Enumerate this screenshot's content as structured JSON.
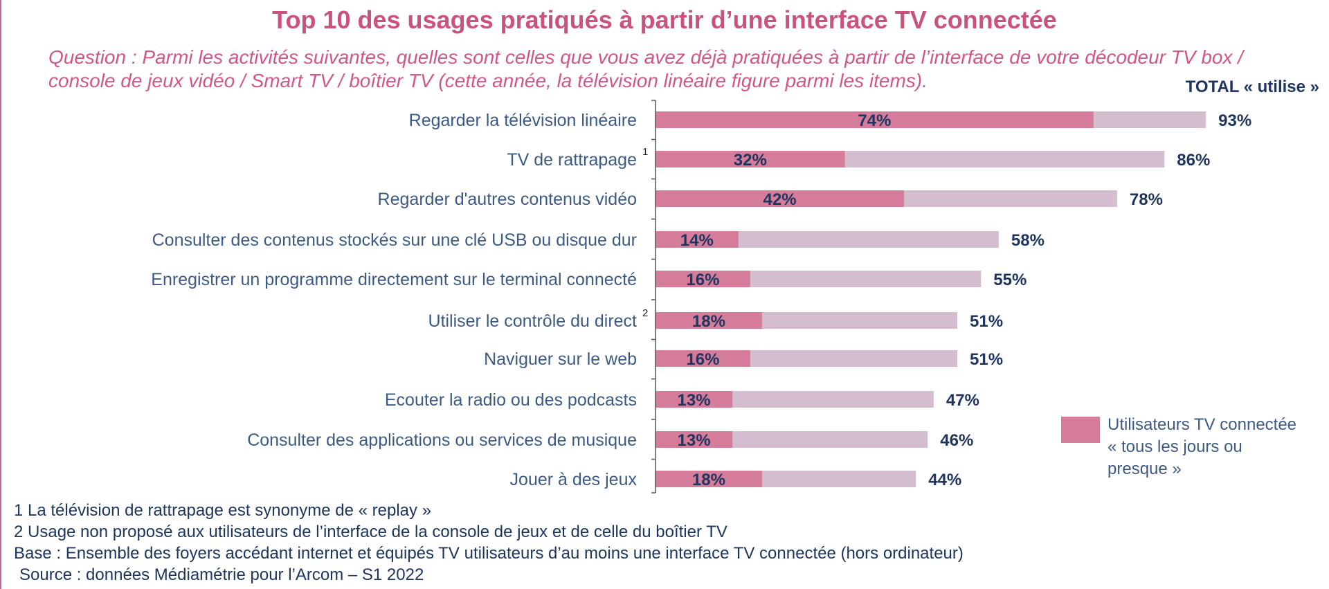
{
  "chart_data": {
    "type": "bar",
    "orientation": "horizontal",
    "stacked": "overlay",
    "title": "Top 10 des usages pratiqués à partir d’une interface TV connectée",
    "subtitle_lines": [
      "Question : Parmi les activités suivantes, quelles sont celles que vous avez déjà pratiquées à partir de l’interface de votre décodeur TV box /",
      "console de jeux vidéo / Smart TV / boîtier TV (cette année, la télévision linéaire figure parmi les items)."
    ],
    "total_label": "TOTAL « utilise »",
    "categories": [
      "Regarder la télévision linéaire",
      "TV de rattrapage",
      "Regarder d'autres contenus vidéo",
      "Consulter des contenus stockés sur une clé USB ou disque dur",
      "Enregistrer un programme directement sur le terminal connecté",
      "Utiliser le contrôle du direct",
      "Naviguer sur le web",
      "Ecouter la radio ou des podcasts",
      "Consulter des applications ou services de musique",
      "Jouer à des jeux"
    ],
    "footnote_markers": [
      "",
      "1",
      "",
      "",
      "",
      "2",
      "",
      "",
      "",
      ""
    ],
    "series": [
      {
        "name": "Utilisateurs TV connectée « tous les jours ou presque »",
        "values": [
          74,
          32,
          42,
          14,
          16,
          18,
          16,
          13,
          13,
          18
        ],
        "color": "#d57c9b"
      },
      {
        "values": [
          93,
          86,
          78,
          58,
          55,
          51,
          51,
          47,
          46,
          44
        ],
        "color": "#d5bdd0"
      }
    ],
    "value_suffix": "%",
    "xlim": [
      0,
      100
    ],
    "legend": {
      "position": "right",
      "lines": [
        "Utilisateurs TV connectée",
        "« tous les jours ou",
        "presque »"
      ],
      "color": "#d57c9b"
    },
    "text_color": "#1f3560",
    "label_color": "#3d5a85"
  },
  "footnotes": [
    "1 La télévision de rattrapage est synonyme de « replay »",
    "2 Usage non proposé aux utilisateurs de l’interface de la console de jeux et de celle du boîtier TV",
    "Base : Ensemble des foyers accédant internet et équipés TV utilisateurs d’au moins une interface TV connectée (hors ordinateur)",
    "Source : données Médiamétrie pour l’Arcom – S1 2022"
  ]
}
